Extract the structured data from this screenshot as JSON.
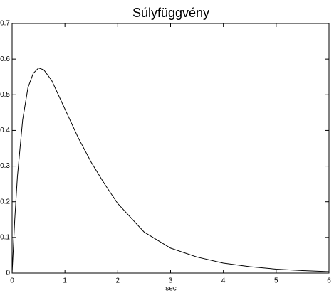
{
  "chart_data": {
    "type": "line",
    "title": "Súlyfüggvény",
    "x_label": "sec",
    "x": [
      0,
      0.05,
      0.1,
      0.2,
      0.3,
      0.4,
      0.5,
      0.6,
      0.75,
      1,
      1.25,
      1.5,
      1.75,
      2,
      2.5,
      3,
      3.5,
      4,
      4.5,
      5,
      5.5,
      6
    ],
    "values": [
      0,
      0.15,
      0.27,
      0.43,
      0.52,
      0.56,
      0.575,
      0.57,
      0.54,
      0.46,
      0.38,
      0.31,
      0.25,
      0.195,
      0.115,
      0.07,
      0.045,
      0.028,
      0.018,
      0.011,
      0.007,
      0.004
    ],
    "color": "#000000",
    "xlim": [
      0,
      6
    ],
    "xticks": [
      0,
      1,
      2,
      3,
      4,
      5,
      6
    ],
    "ylim": [
      0,
      0.7
    ],
    "yticks": [
      0,
      0.1,
      0.2,
      0.3,
      0.4,
      0.5,
      0.6,
      0.7
    ]
  }
}
